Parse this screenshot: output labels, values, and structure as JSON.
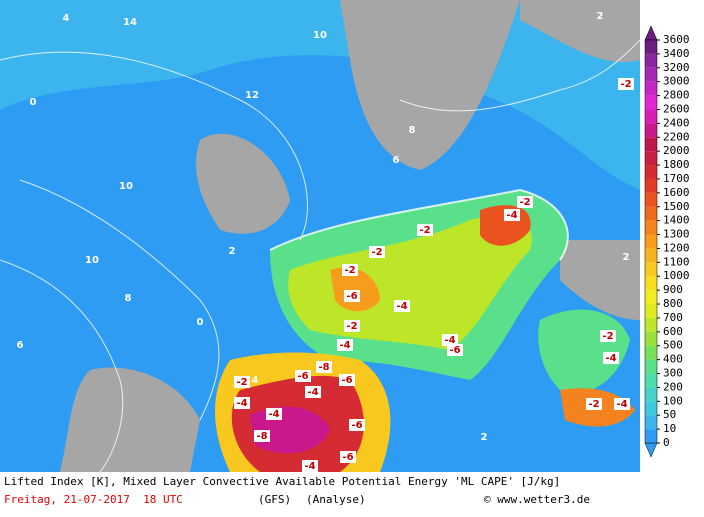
{
  "colorbar": {
    "labels": [
      0,
      10,
      50,
      100,
      200,
      300,
      400,
      500,
      600,
      700,
      800,
      900,
      1000,
      1100,
      1200,
      1300,
      1400,
      1500,
      1600,
      1700,
      1800,
      2000,
      2200,
      2400,
      2600,
      2800,
      3000,
      3200,
      3400,
      3600
    ],
    "colors": [
      "#2e9cf2",
      "#3cb4ee",
      "#3cc8e0",
      "#46d2c8",
      "#4fdcaa",
      "#5ae08a",
      "#78e05a",
      "#9ae03c",
      "#bee628",
      "#dcec1e",
      "#f0ee1e",
      "#f8dc1e",
      "#f8c81e",
      "#f8b41e",
      "#f89c1e",
      "#f4821e",
      "#f06a1e",
      "#ea521e",
      "#e23c28",
      "#d42c32",
      "#c82040",
      "#be1850",
      "#c8188c",
      "#d81eb4",
      "#e228d2",
      "#c628c8",
      "#a828b4",
      "#8c26a0",
      "#6e1e82"
    ]
  },
  "map_labels": [
    "-4",
    "-2",
    "-2",
    "-2",
    "-2",
    "-6",
    "-4",
    "-2",
    "-4",
    "-6",
    "-8",
    "-6",
    "-4",
    "-2",
    "-4",
    "-4",
    "-8",
    "-6",
    "-6",
    "-4",
    "-4",
    "-6",
    "-2",
    "-2",
    "-4",
    "-4",
    "-2",
    "0",
    "2",
    "4",
    "6",
    "8",
    "10",
    "10",
    "12",
    "14",
    "2",
    "4",
    "0",
    "6",
    "8",
    "10",
    "2",
    "2"
  ],
  "footer": {
    "line1": "Lifted Index [K], Mixed Layer Convective Available Potential Energy 'ML CAPE' [J/kg]",
    "date": "Freitag, 21-07-2017  18 UTC",
    "model": "(GFS)",
    "run": "(Analyse)",
    "source": "© www.wetter3.de"
  }
}
